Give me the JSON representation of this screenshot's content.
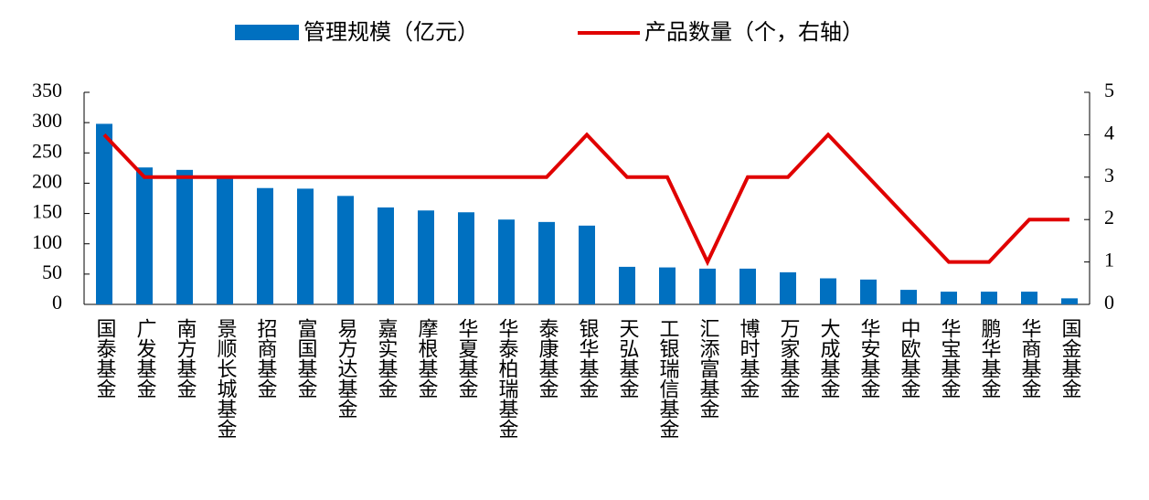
{
  "chart_data": {
    "type": "bar-line",
    "categories": [
      "国泰基金",
      "广发基金",
      "南方基金",
      "景顺长城基金",
      "招商基金",
      "富国基金",
      "易方达基金",
      "嘉实基金",
      "摩根基金",
      "华夏基金",
      "华泰柏瑞基金",
      "泰康基金",
      "银华基金",
      "天弘基金",
      "工银瑞信基金",
      "汇添富基金",
      "博时基金",
      "万家基金",
      "大成基金",
      "华安基金",
      "中欧基金",
      "华宝基金",
      "鹏华基金",
      "华商基金",
      "国金基金"
    ],
    "series": [
      {
        "name": "管理规模（亿元）",
        "color": "#0070c0",
        "type": "bar",
        "values": [
          298,
          226,
          222,
          210,
          192,
          191,
          179,
          160,
          155,
          152,
          140,
          136,
          130,
          62,
          61,
          59,
          59,
          53,
          43,
          41,
          24,
          21,
          21,
          21,
          10
        ]
      },
      {
        "name": "产品数量（个，右轴）",
        "color": "#e00000",
        "type": "line",
        "axis": "y2",
        "values": [
          4,
          3,
          3,
          3,
          3,
          3,
          3,
          3,
          3,
          3,
          3,
          3,
          4,
          3,
          3,
          1,
          3,
          3,
          4,
          3,
          2,
          1,
          1,
          2,
          2
        ]
      }
    ],
    "ylim": [
      0,
      350
    ],
    "yticks": [
      0,
      50,
      100,
      150,
      200,
      250,
      300,
      350
    ],
    "y2lim": [
      0,
      5
    ],
    "y2ticks": [
      0,
      1,
      2,
      3,
      4,
      5
    ]
  }
}
